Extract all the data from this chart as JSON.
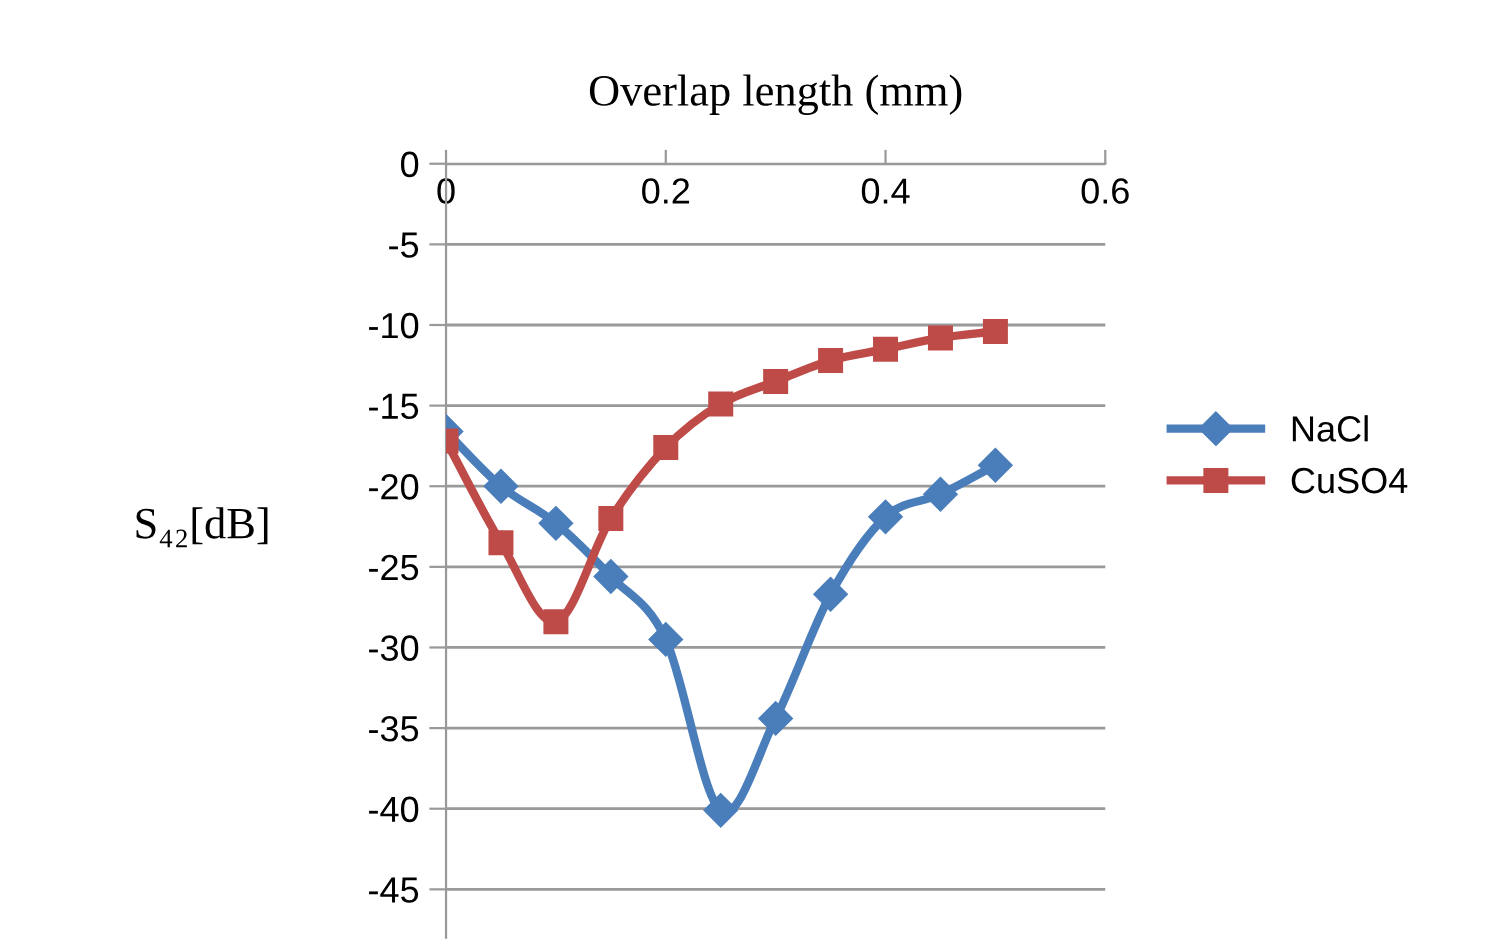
{
  "chart_data": {
    "type": "line",
    "xlabel": "Overlap length (mm)",
    "ylabel": "S₄₂[dB]",
    "x": [
      0,
      0.05,
      0.1,
      0.15,
      0.2,
      0.25,
      0.3,
      0.35,
      0.4,
      0.45,
      0.5
    ],
    "xlim": [
      0,
      0.6
    ],
    "xticks": [
      0,
      0.2,
      0.4,
      0.6
    ],
    "ylim": [
      -48,
      0
    ],
    "yticks": [
      0,
      -5,
      -10,
      -15,
      -20,
      -25,
      -30,
      -35,
      -40,
      -45
    ],
    "grid": "y",
    "legend": "right",
    "series": [
      {
        "name": "NaCl",
        "color": "#4a7ebb",
        "marker": "diamond",
        "values": [
          -16.6,
          -20.0,
          -22.3,
          -25.6,
          -29.5,
          -40.1,
          -34.4,
          -26.7,
          -21.9,
          -20.5,
          -18.7
        ]
      },
      {
        "name": "CuSO4",
        "color": "#be4b48",
        "marker": "square",
        "values": [
          -17.2,
          -23.5,
          -28.4,
          -22.0,
          -17.6,
          -14.9,
          -13.5,
          -12.2,
          -11.5,
          -10.8,
          -10.4
        ]
      }
    ]
  }
}
